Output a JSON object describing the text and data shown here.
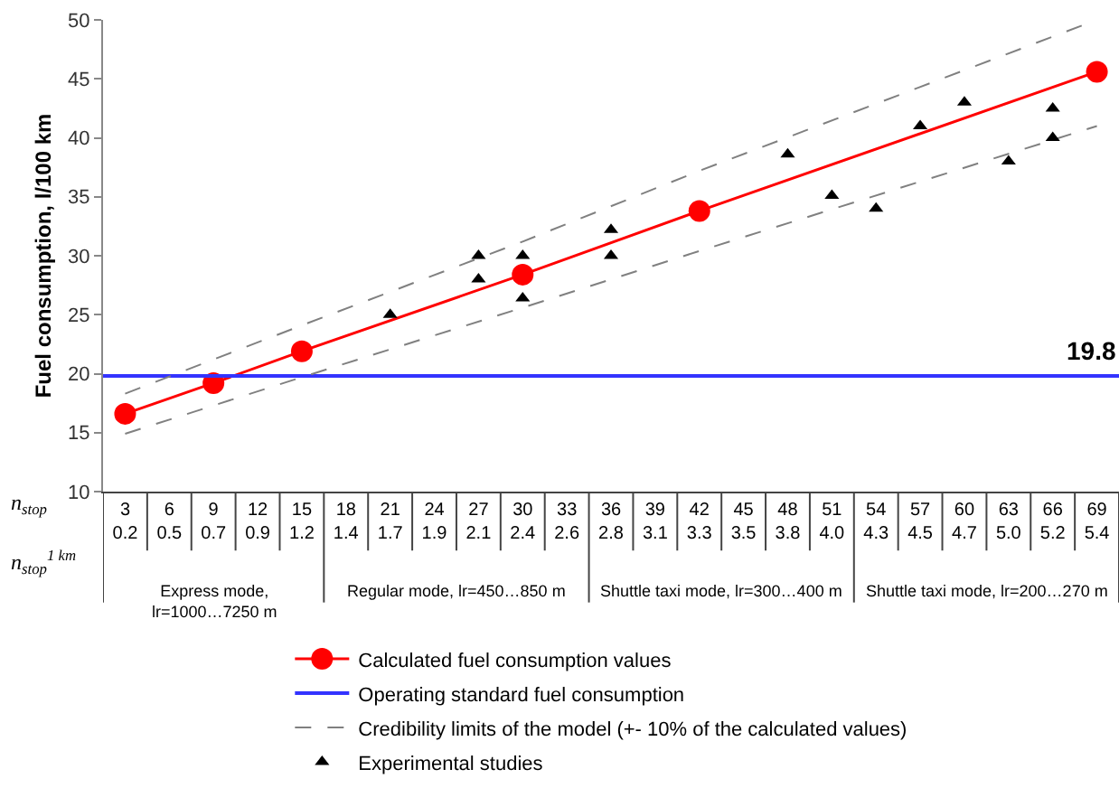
{
  "chart_data": {
    "type": "line",
    "ylabel": "Fuel consumption, l/100 km",
    "categories": [
      "3\n0.2",
      "6\n0.5",
      "9\n0.7",
      "12\n0.9",
      "15\n1.2",
      "18\n1.4",
      "21\n1.7",
      "24\n1.9",
      "27\n2.1",
      "30\n2.4",
      "33\n2.6",
      "36\n2.8",
      "39\n3.1",
      "42\n3.3",
      "45\n3.5",
      "48\n3.8",
      "51\n4.0",
      "54\n4.3",
      "57\n4.5",
      "60\n4.7",
      "63\n5.0",
      "66\n5.2",
      "69\n5.4"
    ],
    "series": [
      {
        "name": "Calculated fuel consumption values",
        "color": "#ff0000",
        "marker": "circle",
        "line_style": "solid",
        "values": [
          16.6,
          null,
          19.2,
          null,
          21.9,
          null,
          null,
          null,
          null,
          28.4,
          null,
          null,
          null,
          33.8,
          null,
          null,
          null,
          null,
          null,
          null,
          null,
          null,
          45.6
        ]
      },
      {
        "name": "Credibility limits of the model (+- 10% of the calculated values)",
        "type": "line",
        "color": "#808080",
        "marker": "none",
        "line_style": "dashed",
        "values": [
          18.3,
          null,
          null,
          null,
          24.1,
          null,
          null,
          null,
          null,
          31.2,
          null,
          null,
          null,
          37.2,
          null,
          null,
          null,
          null,
          null,
          null,
          null,
          null,
          50.0
        ]
      },
      {
        "type": "line",
        "color": "#808080",
        "marker": "none",
        "line_style": "dashed",
        "values": [
          14.9,
          null,
          null,
          null,
          19.7,
          null,
          null,
          null,
          null,
          25.6,
          null,
          null,
          null,
          30.4,
          null,
          null,
          null,
          null,
          null,
          null,
          null,
          null,
          41.0
        ]
      },
      {
        "name": "Experimental studies",
        "type": "scatter",
        "color": "#000000",
        "marker": "triangle",
        "x": [
          "21\n1.7",
          "27\n2.1",
          "27\n2.1",
          "30\n2.4",
          "30\n2.4",
          "36\n2.8",
          "36\n2.8",
          "48\n3.8",
          "51\n4.0",
          "54\n4.3",
          "57\n4.5",
          "60\n4.7",
          "63\n5.0",
          "66\n5.2",
          "66\n5.2"
        ],
        "values": [
          25.0,
          30.0,
          28.0,
          30.0,
          26.4,
          32.2,
          30.0,
          38.6,
          35.1,
          34.0,
          41.0,
          43.0,
          38.0,
          42.5,
          40.0
        ]
      }
    ],
    "ref_lines": [
      {
        "axis": "y",
        "value": 19.8,
        "label": "Operating standard fuel consumption",
        "color": "#3333ff"
      }
    ],
    "annotations": [
      {
        "text": "19.8",
        "y": 19.8
      },
      "n$_{stop}$",
      "n$_{stop}$$^{1 km}$",
      "Express mode,\nlr=1000…7250 m",
      "Regular mode, lr=450…850 m",
      "Shuttle taxi mode, lr=300…400 m",
      "Shuttle taxi mode, lr=200…270 m"
    ],
    "ylim": [
      10,
      50
    ],
    "yticks": [
      10,
      15,
      20,
      25,
      30,
      35,
      40,
      45,
      50
    ],
    "grid": false,
    "legend": "bottom"
  }
}
